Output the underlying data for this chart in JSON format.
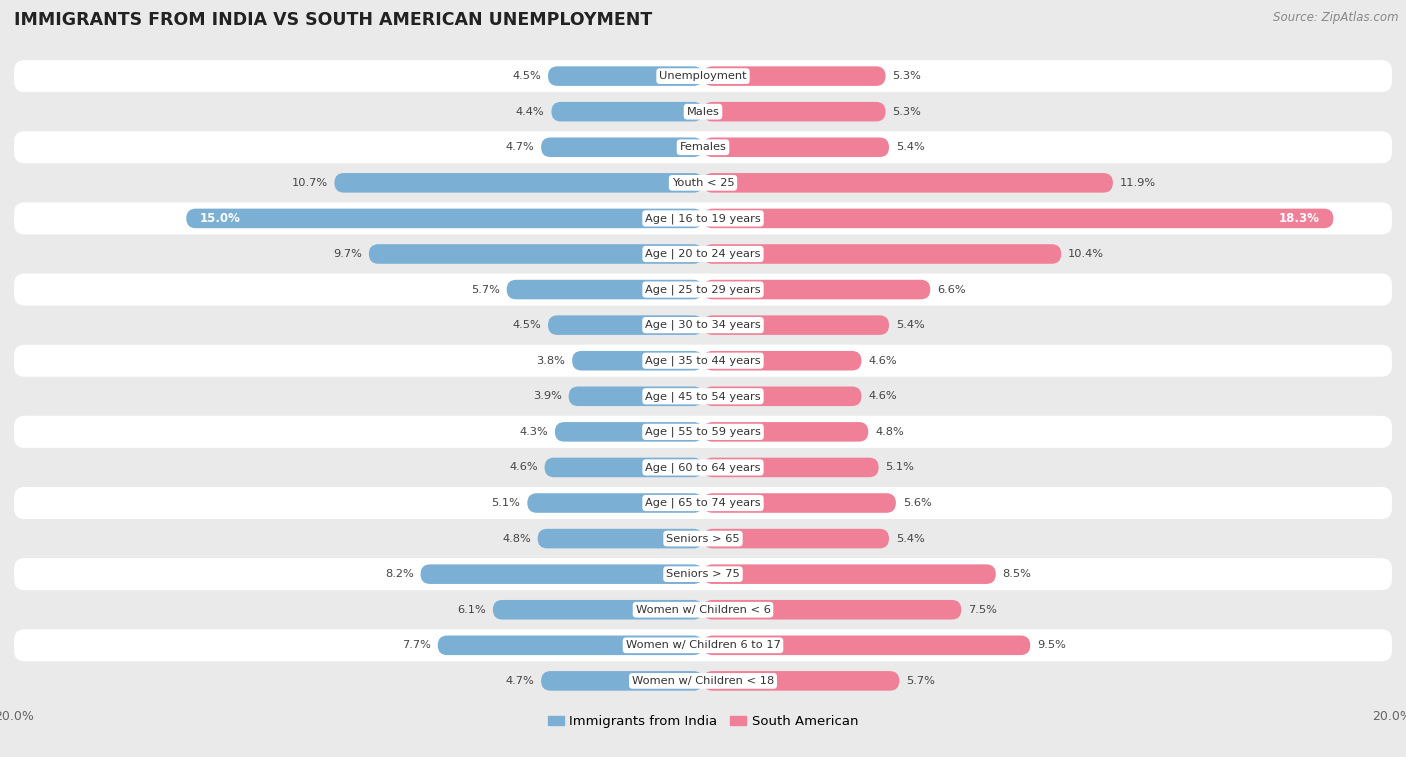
{
  "title": "IMMIGRANTS FROM INDIA VS SOUTH AMERICAN UNEMPLOYMENT",
  "source": "Source: ZipAtlas.com",
  "categories": [
    "Unemployment",
    "Males",
    "Females",
    "Youth < 25",
    "Age | 16 to 19 years",
    "Age | 20 to 24 years",
    "Age | 25 to 29 years",
    "Age | 30 to 34 years",
    "Age | 35 to 44 years",
    "Age | 45 to 54 years",
    "Age | 55 to 59 years",
    "Age | 60 to 64 years",
    "Age | 65 to 74 years",
    "Seniors > 65",
    "Seniors > 75",
    "Women w/ Children < 6",
    "Women w/ Children 6 to 17",
    "Women w/ Children < 18"
  ],
  "india_values": [
    4.5,
    4.4,
    4.7,
    10.7,
    15.0,
    9.7,
    5.7,
    4.5,
    3.8,
    3.9,
    4.3,
    4.6,
    5.1,
    4.8,
    8.2,
    6.1,
    7.7,
    4.7
  ],
  "south_american_values": [
    5.3,
    5.3,
    5.4,
    11.9,
    18.3,
    10.4,
    6.6,
    5.4,
    4.6,
    4.6,
    4.8,
    5.1,
    5.6,
    5.4,
    8.5,
    7.5,
    9.5,
    5.7
  ],
  "india_color": "#7BAFD4",
  "south_american_color": "#F08098",
  "background_color": "#EAEAEA",
  "row_bg_white": "#FFFFFF",
  "row_bg_gray": "#EAEAEA",
  "axis_max": 20.0,
  "legend_india": "Immigrants from India",
  "legend_sa": "South American",
  "inside_label_threshold": 12.0,
  "inside_label_india": [
    15.0
  ],
  "inside_label_sa": [
    18.3
  ]
}
